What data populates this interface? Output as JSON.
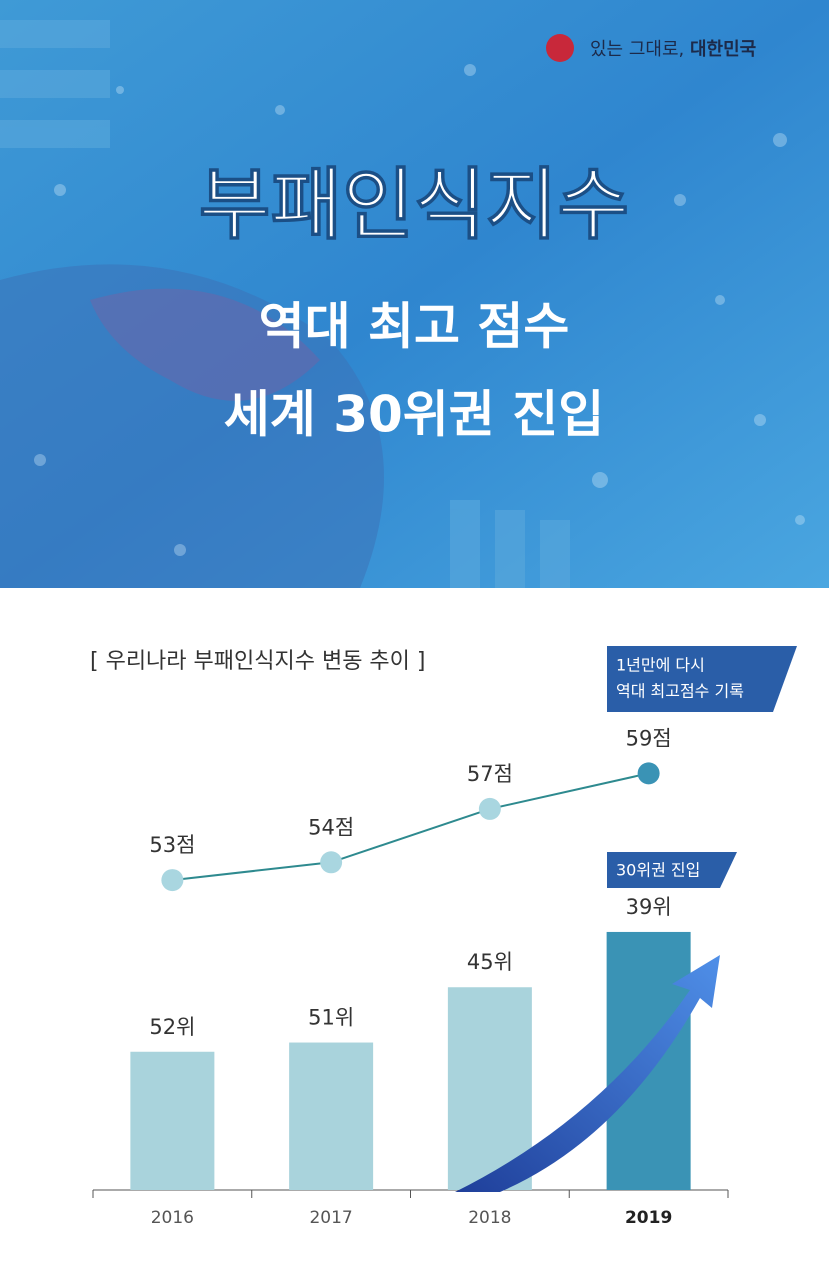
{
  "header": {
    "logo": [
      "있는 그대로,",
      "대한민국"
    ],
    "title": "부패인식지수",
    "subtitle": [
      "역대 최고 점수",
      "세계 30위권 진입"
    ]
  },
  "chart_data": {
    "type": "combo",
    "title": "[ 우리나라 부패인식지수 변동 추이 ]",
    "categories": [
      "2016",
      "2017",
      "2018",
      "2019"
    ],
    "series": [
      {
        "type": "line",
        "axis": "y2",
        "color": "#2e8a8f",
        "values": [
          53,
          54,
          57,
          59
        ],
        "value_labels": [
          "53점",
          "54점",
          "57점",
          "59점"
        ],
        "colors": [
          "#a9d6e0",
          "#a9d6e0",
          "#a9d6e0",
          "#3a93b5"
        ]
      },
      {
        "type": "bar",
        "values": [
          52,
          51,
          45,
          39
        ],
        "value_labels": [
          "52위",
          "51위",
          "45위",
          "39위"
        ],
        "colors": [
          "#a9d3dc",
          "#a9d3dc",
          "#a9d3dc",
          "#3a93b5"
        ]
      }
    ],
    "ylim": [
      67,
      30
    ],
    "y2lim": [
      48,
      62
    ],
    "annotations": [
      {
        "text": [
          "1년만에 다시",
          "역대 최고점수 기록"
        ]
      },
      {
        "text": "30위권 진입"
      }
    ]
  }
}
